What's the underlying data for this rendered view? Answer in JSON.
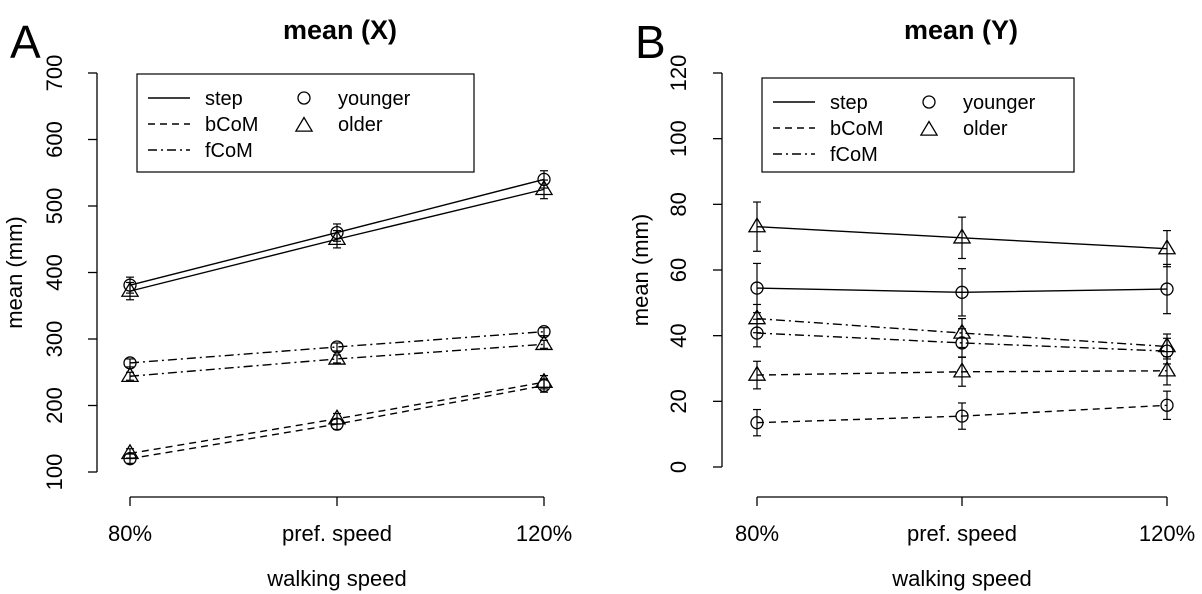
{
  "chart_data": [
    {
      "type": "line",
      "panel_label": "A",
      "title": "mean (X)",
      "xlabel": "walking speed",
      "ylabel": "mean (mm)",
      "categories": [
        "80%",
        "pref. speed",
        "120%"
      ],
      "ylim": [
        100,
        700
      ],
      "yticks": [
        "100",
        "200",
        "300",
        "400",
        "500",
        "600",
        "700"
      ],
      "legend": {
        "placement": "top-left",
        "line_types": [
          "step",
          "bCoM",
          "fCoM"
        ],
        "groups": [
          "younger",
          "older"
        ]
      },
      "series": [
        {
          "name": "step younger",
          "measure": "step",
          "group": "younger",
          "values": [
            381,
            460,
            540
          ],
          "error": [
            12,
            13,
            13
          ]
        },
        {
          "name": "step older",
          "measure": "step",
          "group": "older",
          "values": [
            372,
            450,
            525
          ],
          "error": [
            13,
            13,
            14
          ]
        },
        {
          "name": "bCoM younger",
          "measure": "bCoM",
          "group": "younger",
          "values": [
            120,
            172,
            230
          ],
          "error": [
            7,
            8,
            10
          ]
        },
        {
          "name": "bCoM older",
          "measure": "bCoM",
          "group": "older",
          "values": [
            128,
            180,
            235
          ],
          "error": [
            7,
            8,
            10
          ]
        },
        {
          "name": "fCoM younger",
          "measure": "fCoM",
          "group": "younger",
          "values": [
            264,
            288,
            311
          ],
          "error": [
            6,
            6,
            6
          ]
        },
        {
          "name": "fCoM older",
          "measure": "fCoM",
          "group": "older",
          "values": [
            244,
            270,
            292
          ],
          "error": [
            6,
            6,
            6
          ]
        }
      ]
    },
    {
      "type": "line",
      "panel_label": "B",
      "title": "mean (Y)",
      "xlabel": "walking speed",
      "ylabel": "mean (mm)",
      "categories": [
        "80%",
        "pref. speed",
        "120%"
      ],
      "ylim": [
        0,
        120
      ],
      "yticks": [
        "0",
        "20",
        "40",
        "60",
        "80",
        "100",
        "120"
      ],
      "legend": {
        "placement": "top-left",
        "line_types": [
          "step",
          "bCoM",
          "fCoM"
        ],
        "groups": [
          "younger",
          "older"
        ]
      },
      "series": [
        {
          "name": "step younger",
          "measure": "step",
          "group": "younger",
          "values": [
            54.5,
            53.2,
            54.2
          ],
          "error": [
            7.5,
            7.2,
            7.5
          ]
        },
        {
          "name": "step older",
          "measure": "step",
          "group": "older",
          "values": [
            73.2,
            69.8,
            66.5
          ],
          "error": [
            7.5,
            6.3,
            5.5
          ]
        },
        {
          "name": "bCoM younger",
          "measure": "bCoM",
          "group": "younger",
          "values": [
            13.5,
            15.5,
            18.8
          ],
          "error": [
            4.0,
            4.0,
            4.3
          ]
        },
        {
          "name": "bCoM older",
          "measure": "bCoM",
          "group": "older",
          "values": [
            28.0,
            29.0,
            29.3
          ],
          "error": [
            4.2,
            4.4,
            4.3
          ]
        },
        {
          "name": "fCoM younger",
          "measure": "fCoM",
          "group": "younger",
          "values": [
            40.8,
            37.8,
            35.3
          ],
          "error": [
            4.2,
            4.3,
            3.9
          ]
        },
        {
          "name": "fCoM older",
          "measure": "fCoM",
          "group": "older",
          "values": [
            45.2,
            40.8,
            36.7
          ],
          "error": [
            4.3,
            4.4,
            3.8
          ]
        }
      ]
    }
  ]
}
